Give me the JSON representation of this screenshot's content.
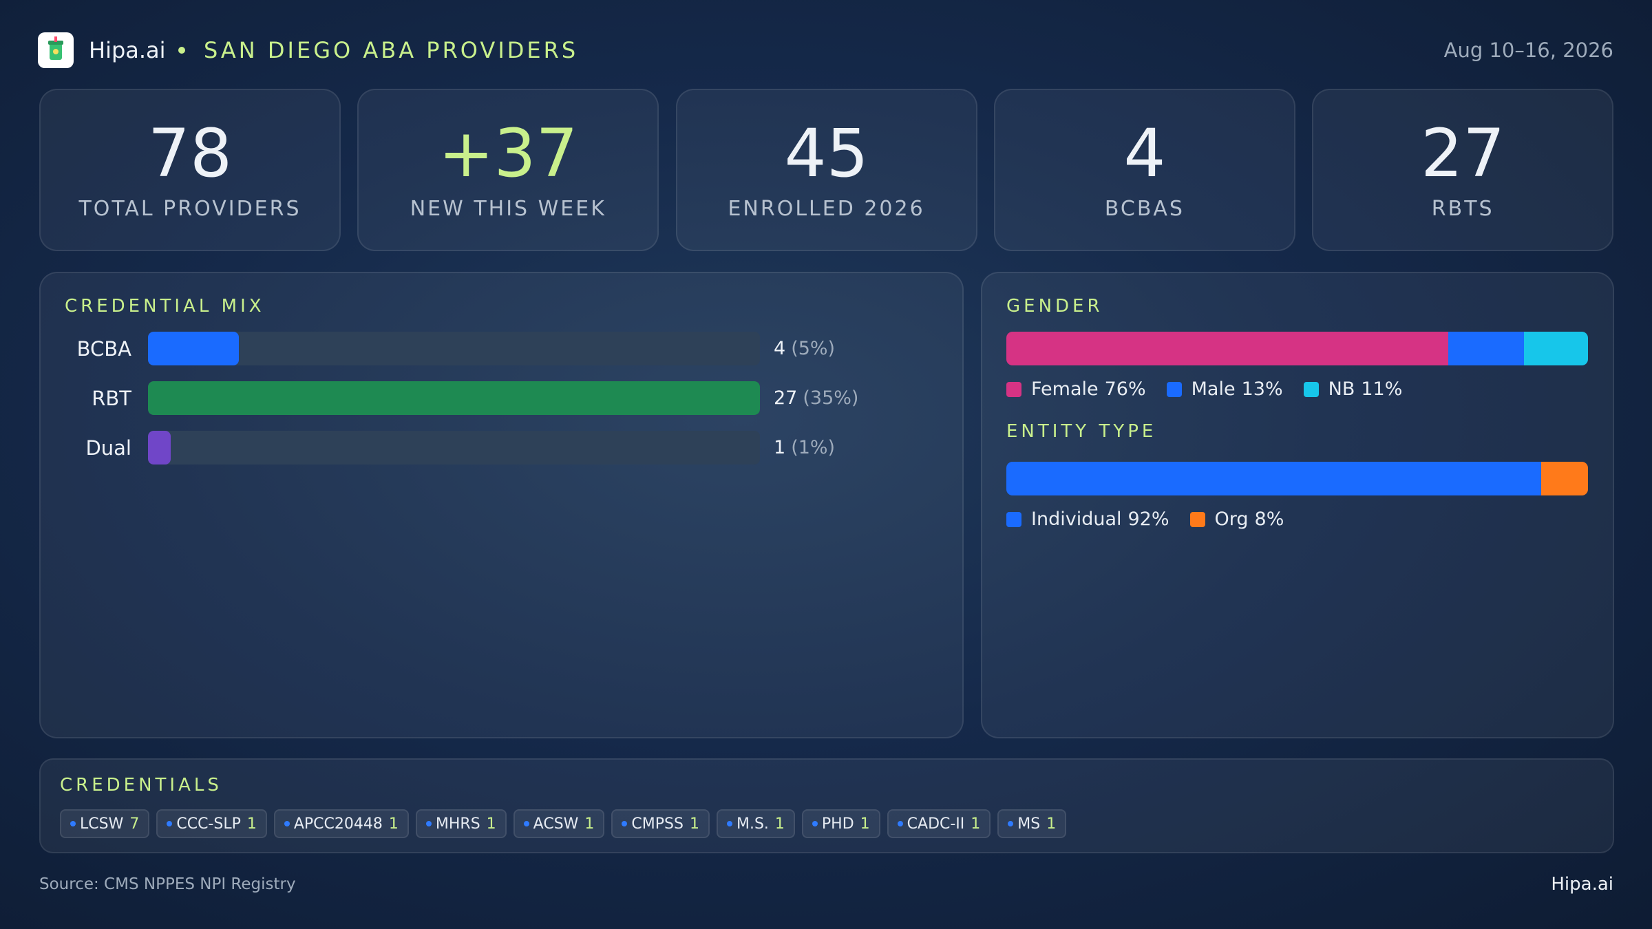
{
  "header": {
    "brand": "Hipa.ai",
    "title": "SAN DIEGO ABA PROVIDERS",
    "date": "Aug 10–16, 2026"
  },
  "kpis": [
    {
      "value": 78,
      "label": "TOTAL PROVIDERS"
    },
    {
      "value": "+37",
      "label": "NEW THIS WEEK"
    },
    {
      "value": 45,
      "label": "ENROLLED 2026"
    },
    {
      "value": 4,
      "label": "BCBAS"
    },
    {
      "value": 27,
      "label": "RBTS"
    }
  ],
  "chart_data": [
    {
      "type": "bar",
      "title": "CREDENTIAL MIX",
      "categories": [
        "BCBA",
        "RBT",
        "Dual"
      ],
      "values": [
        4,
        27,
        1
      ],
      "share_labels": [
        "(5%)",
        "(35%)",
        "(1%)"
      ],
      "colors": [
        "#1a6bff",
        "#1e8a52",
        "#7046c8"
      ],
      "xlim": [
        0,
        27
      ]
    },
    {
      "type": "stacked-bar",
      "title": "GENDER",
      "xlim": [
        0,
        100
      ],
      "series": [
        {
          "name": "Female",
          "color": "#d63384",
          "values": [
            76
          ],
          "value_labels": [
            "76%"
          ]
        },
        {
          "name": "Male",
          "color": "#1a6bff",
          "values": [
            13
          ],
          "value_labels": [
            "13%"
          ]
        },
        {
          "name": "NB",
          "color": "#17c6ea",
          "values": [
            11
          ],
          "value_labels": [
            "11%"
          ]
        }
      ]
    },
    {
      "type": "stacked-bar",
      "title": "ENTITY TYPE",
      "xlim": [
        0,
        100
      ],
      "series": [
        {
          "name": "Individual",
          "color": "#1a6bff",
          "values": [
            92
          ],
          "value_labels": [
            "92%"
          ]
        },
        {
          "name": "Org",
          "color": "#ff7a1a",
          "values": [
            8
          ],
          "value_labels": [
            "8%"
          ]
        }
      ]
    }
  ],
  "credentials": {
    "title": "CREDENTIALS",
    "items": [
      {
        "name": "LCSW",
        "count": 7
      },
      {
        "name": "CCC-SLP",
        "count": 1
      },
      {
        "name": "APCC20448",
        "count": 1
      },
      {
        "name": "MHRS",
        "count": 1
      },
      {
        "name": "ACSW",
        "count": 1
      },
      {
        "name": "CMPSS",
        "count": 1
      },
      {
        "name": "M.S.",
        "count": 1
      },
      {
        "name": "PHD",
        "count": 1
      },
      {
        "name": "CADC-II",
        "count": 1
      },
      {
        "name": "MS",
        "count": 1
      }
    ]
  },
  "footer": {
    "source": "Source: CMS NPPES NPI Registry",
    "brand": "Hipa.ai"
  }
}
